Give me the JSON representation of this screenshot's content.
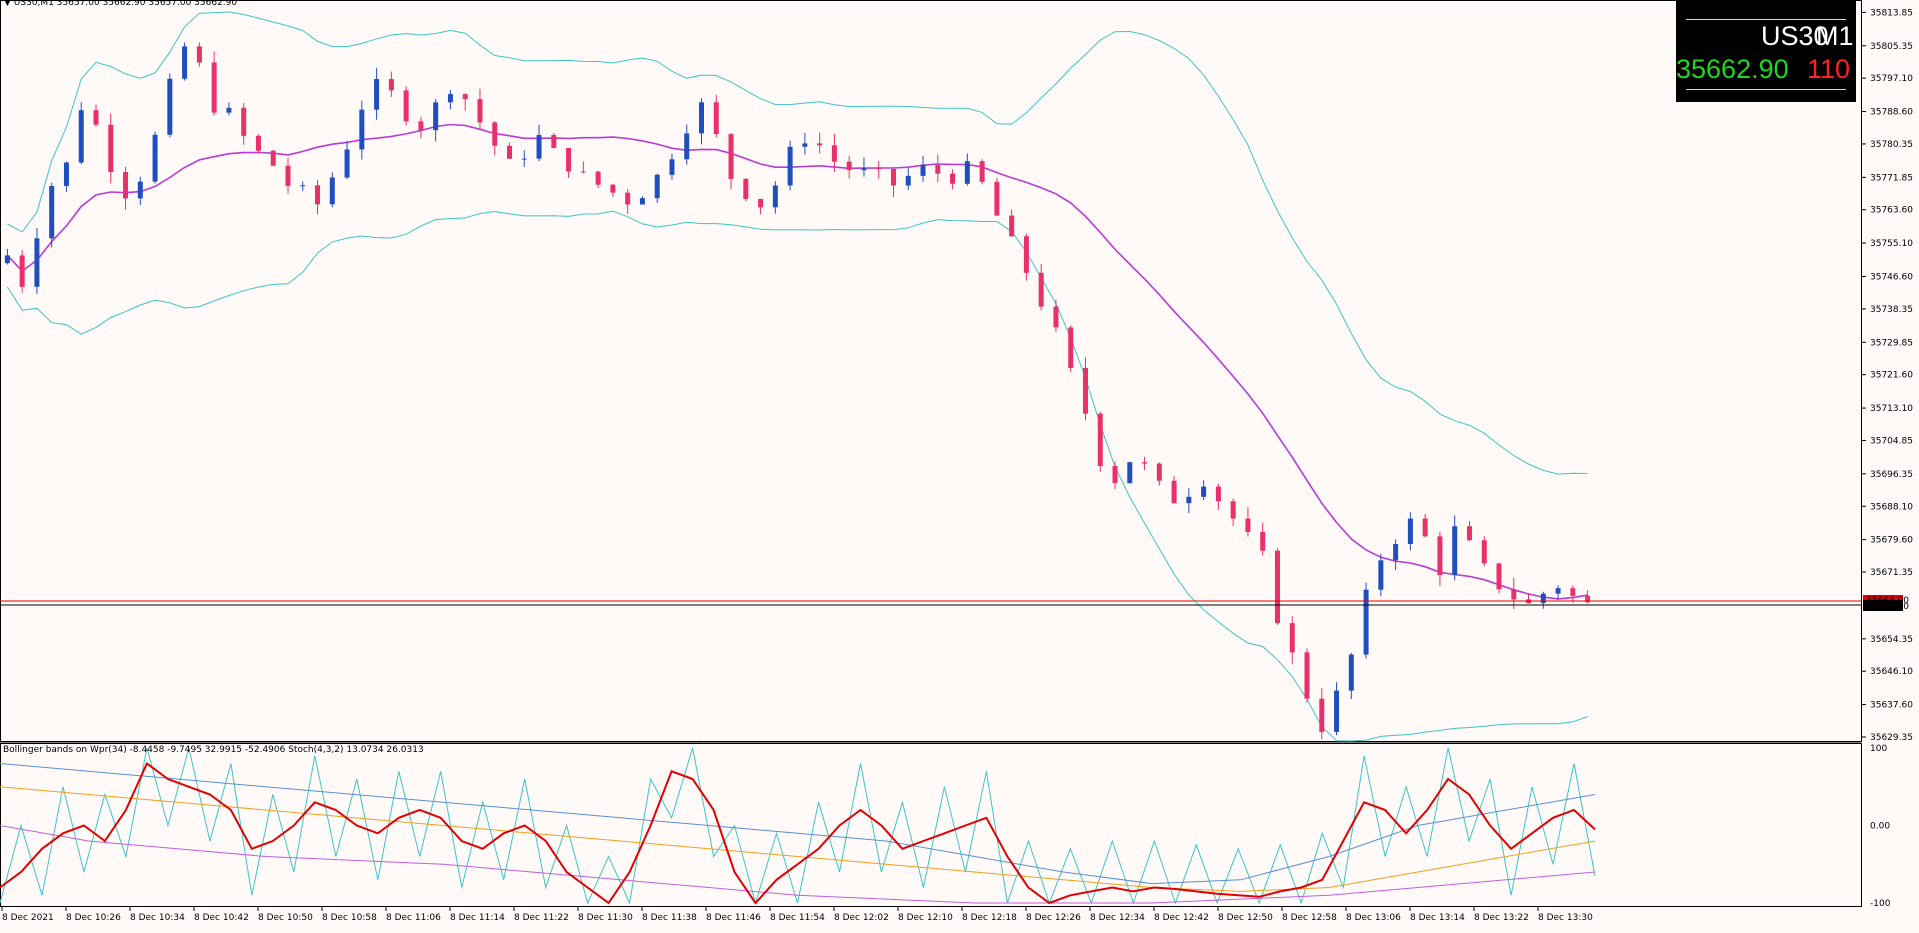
{
  "header": {
    "symbol_arrow": "▼",
    "title": "US30,M1  35657.00 35662.90 35657.00 35662.90"
  },
  "symbol_box": {
    "symbol": "US30",
    "timeframe": "M1",
    "price": "35662.90",
    "spread": "110"
  },
  "indicator_title": "Bollinger bands on Wpr(34) -8.4458 -9.7495 32.9915 -52.4906  Stoch(4,3,2) 13.0734 26.0313",
  "colors": {
    "background": "#fffaf8",
    "bull": "#1f4fbf",
    "bear": "#e8306a",
    "bands": "#3cc4c6",
    "middle": "#b73ad8",
    "bid_line": "#000000",
    "ask_line": "#e00000",
    "stoch_main": "#e00000",
    "wpr": "#3cc4c6",
    "wpr_bb_upper": "#5a8fd6",
    "wpr_bb_mid": "#f0a020",
    "wpr_bb_lower": "#c060e0"
  },
  "chart_data": [
    {
      "type": "candlestick",
      "title": "US30,M1",
      "y_ticks": [
        "35813.85",
        "35805.35",
        "35797.10",
        "35788.60",
        "35780.35",
        "35771.85",
        "35763.60",
        "35755.10",
        "35746.60",
        "35738.35",
        "35729.85",
        "35721.60",
        "35713.10",
        "35704.85",
        "35696.35",
        "35688.10",
        "35679.60",
        "35671.35",
        "35654.35",
        "35646.10",
        "35637.60",
        "35629.35"
      ],
      "ylim": [
        35629.35,
        35817.0
      ],
      "current_bid": "35662.90",
      "current_ask": "35664.00",
      "x_ticks": [
        "8 Dec 2021",
        "8 Dec 10:26",
        "8 Dec 10:34",
        "8 Dec 10:42",
        "8 Dec 10:50",
        "8 Dec 10:58",
        "8 Dec 11:06",
        "8 Dec 11:14",
        "8 Dec 11:22",
        "8 Dec 11:30",
        "8 Dec 11:38",
        "8 Dec 11:46",
        "8 Dec 11:54",
        "8 Dec 12:02",
        "8 Dec 12:10",
        "8 Dec 12:18",
        "8 Dec 12:26",
        "8 Dec 12:34",
        "8 Dec 12:42",
        "8 Dec 12:50",
        "8 Dec 12:58",
        "8 Dec 13:06",
        "8 Dec 13:14",
        "8 Dec 13:22",
        "8 Dec 13:30"
      ],
      "close_path": [
        35752,
        35745,
        35758,
        35770,
        35775,
        35790,
        35785,
        35775,
        35768,
        35772,
        35782,
        35795,
        35805,
        35800,
        35790,
        35788,
        35782,
        35778,
        35775,
        35770,
        35768,
        35765,
        35772,
        35780,
        35790,
        35795,
        35793,
        35788,
        35785,
        35790,
        35795,
        35792,
        35786,
        35780,
        35775,
        35778,
        35782,
        35778,
        35775,
        35772,
        35770,
        35768,
        35766,
        35768,
        35772,
        35778,
        35785,
        35790,
        35782,
        35772,
        35768,
        35765,
        35770,
        35778,
        35782,
        35780,
        35776,
        35774,
        35773,
        35772,
        35770,
        35772,
        35774,
        35773,
        35772,
        35774,
        35770,
        35762,
        35755,
        35748,
        35740,
        35732,
        35722,
        35712,
        35700,
        35695,
        35700,
        35698,
        35693,
        35690,
        35692,
        35695,
        35690,
        35685,
        35680,
        35675,
        35660,
        35650,
        35640,
        35632,
        35640,
        35650,
        35665,
        35675,
        35680,
        35684,
        35680,
        35672,
        35682,
        35678,
        35672,
        35668,
        35665,
        35663,
        35666,
        35668,
        35665,
        35663
      ],
      "series": [
        {
          "name": "Bollinger upper"
        },
        {
          "name": "Bollinger middle"
        },
        {
          "name": "Bollinger lower"
        }
      ]
    },
    {
      "type": "line",
      "title": "Bollinger bands on Wpr(34)  Stoch(4,3,2)",
      "y_ticks": [
        "100",
        "0.00",
        "-100"
      ],
      "ylim": [
        -100,
        100
      ],
      "stoch_path": [
        -80,
        -60,
        -30,
        -10,
        0,
        -20,
        20,
        80,
        60,
        50,
        40,
        20,
        -30,
        -20,
        0,
        30,
        20,
        0,
        -10,
        10,
        20,
        10,
        -20,
        -30,
        -10,
        0,
        -20,
        -60,
        -80,
        -100,
        -60,
        0,
        70,
        60,
        20,
        -60,
        -100,
        -70,
        -50,
        -30,
        0,
        20,
        0,
        -30,
        -20,
        -10,
        0,
        10,
        -40,
        -80,
        -100,
        -90,
        -85,
        -80,
        -85,
        -80,
        -82,
        -85,
        -88,
        -90,
        -92,
        -85,
        -80,
        -70,
        -20,
        30,
        20,
        -10,
        20,
        60,
        40,
        0,
        -30,
        -10,
        10,
        20,
        -5
      ],
      "wpr_mid_path": [
        50,
        40,
        30,
        20,
        10,
        0,
        -10,
        -20,
        -30,
        -40,
        -50,
        -60,
        -70,
        -80,
        -85,
        -80,
        -60,
        -40,
        -20
      ],
      "wpr_upper_path": [
        80,
        70,
        60,
        50,
        40,
        30,
        20,
        10,
        0,
        -10,
        -20,
        -40,
        -60,
        -75,
        -70,
        -40,
        0,
        20,
        40
      ],
      "wpr_lower_path": [
        0,
        -20,
        -30,
        -40,
        -45,
        -50,
        -60,
        -70,
        -80,
        -90,
        -95,
        -100,
        -100,
        -100,
        -95,
        -90,
        -80,
        -70,
        -60
      ]
    }
  ]
}
